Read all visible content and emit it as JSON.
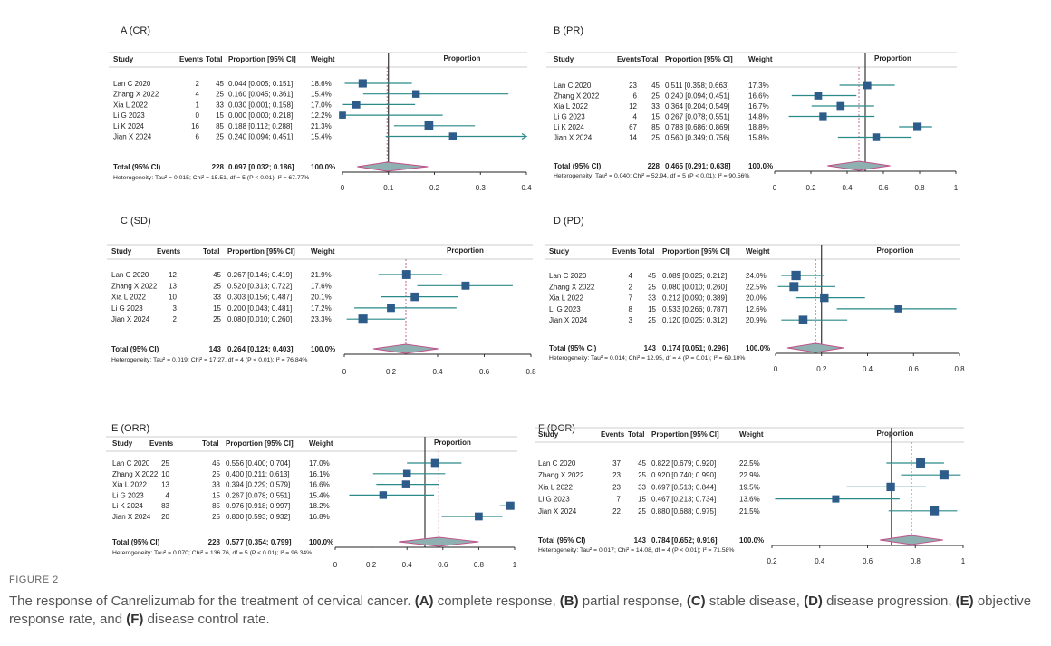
{
  "figure": {
    "label": "FIGURE 2",
    "caption": [
      {
        "t": "The response of Canrelizumab for the treatment of cervical cancer. ",
        "b": false
      },
      {
        "t": "(A)",
        "b": true
      },
      {
        "t": " complete response, ",
        "b": false
      },
      {
        "t": "(B)",
        "b": true
      },
      {
        "t": " partial response, ",
        "b": false
      },
      {
        "t": "(C)",
        "b": true
      },
      {
        "t": " stable disease, ",
        "b": false
      },
      {
        "t": "(D)",
        "b": true
      },
      {
        "t": " disease progression, ",
        "b": false
      },
      {
        "t": "(E)",
        "b": true
      },
      {
        "t": " objective response rate, and ",
        "b": false
      },
      {
        "t": "(F)",
        "b": true
      },
      {
        "t": " disease control rate.",
        "b": false
      }
    ]
  },
  "colors": {
    "box": "#2d5b8a",
    "ci": "#2a8a8a",
    "diamond_fill": "#8fb0b0",
    "diamond_edge": "#c0508a",
    "pooled_line": "#c05090"
  },
  "chart_data": [
    {
      "type": "forest",
      "panel": "A",
      "title": "A    (CR)",
      "columns": {
        "study": "Study",
        "events": "Events",
        "total": "Total",
        "ci": "Proportion [95% CI]",
        "weight": "Weight",
        "plot": "Proportion"
      },
      "studies": [
        {
          "name": "Lan C 2020",
          "events": "2",
          "total": "45",
          "ci_text": "0.044 [0.005; 0.151]",
          "weight": "18.6%",
          "est": 0.044,
          "lo": 0.005,
          "hi": 0.151
        },
        {
          "name": "Zhang X 2022",
          "events": "4",
          "total": "25",
          "ci_text": "0.160 [0.045; 0.361]",
          "weight": "15.4%",
          "est": 0.16,
          "lo": 0.045,
          "hi": 0.361
        },
        {
          "name": "Xia L 2022",
          "events": "1",
          "total": "33",
          "ci_text": "0.030 [0.001; 0.158]",
          "weight": "17.0%",
          "est": 0.03,
          "lo": 0.001,
          "hi": 0.158
        },
        {
          "name": "Li G 2023",
          "events": "0",
          "total": "15",
          "ci_text": "0.000 [0.000; 0.218]",
          "weight": "12.2%",
          "est": 0.0,
          "lo": 0.0,
          "hi": 0.218
        },
        {
          "name": "Li K 2024",
          "events": "16",
          "total": "85",
          "ci_text": "0.188 [0.112; 0.288]",
          "weight": "21.3%",
          "est": 0.188,
          "lo": 0.112,
          "hi": 0.288
        },
        {
          "name": "Jian X 2024",
          "events": "6",
          "total": "25",
          "ci_text": "0.240 [0.094; 0.451]",
          "weight": "15.4%",
          "est": 0.24,
          "lo": 0.094,
          "hi": 0.451
        }
      ],
      "total": {
        "name": "Total (95% CI)",
        "total": "228",
        "ci_text": "0.097 [0.032; 0.186]",
        "weight": "100.0%",
        "est": 0.097,
        "lo": 0.032,
        "hi": 0.186
      },
      "heterogeneity": "Heterogeneity: Tau² = 0.015; Chi² = 15.51, df = 5 (P < 0.01); I² = 67.77%",
      "xlim": [
        0,
        0.4
      ],
      "ticks": [
        "0",
        "0.1",
        "0.2",
        "0.3",
        "0.4"
      ],
      "ref_line": 0.1
    },
    {
      "type": "forest",
      "panel": "B",
      "title": "B (PR)",
      "columns": {
        "study": "Study",
        "events": "Events",
        "total": "Total",
        "ci": "Proportion [95% CI]",
        "weight": "Weight",
        "plot": "Proportion"
      },
      "studies": [
        {
          "name": "Lan C 2020",
          "events": "23",
          "total": "45",
          "ci_text": "0.511 [0.358; 0.663]",
          "weight": "17.3%",
          "est": 0.511,
          "lo": 0.358,
          "hi": 0.663
        },
        {
          "name": "Zhang X 2022",
          "events": "6",
          "total": "25",
          "ci_text": "0.240 [0.094; 0.451]",
          "weight": "16.6%",
          "est": 0.24,
          "lo": 0.094,
          "hi": 0.451
        },
        {
          "name": "Xia L 2022",
          "events": "12",
          "total": "33",
          "ci_text": "0.364 [0.204; 0.549]",
          "weight": "16.7%",
          "est": 0.364,
          "lo": 0.204,
          "hi": 0.549
        },
        {
          "name": "Li G 2023",
          "events": "4",
          "total": "15",
          "ci_text": "0.267 [0.078; 0.551]",
          "weight": "14.8%",
          "est": 0.267,
          "lo": 0.078,
          "hi": 0.551
        },
        {
          "name": "Li K 2024",
          "events": "67",
          "total": "85",
          "ci_text": "0.788 [0.686; 0.869]",
          "weight": "18.8%",
          "est": 0.788,
          "lo": 0.686,
          "hi": 0.869
        },
        {
          "name": "Jian X 2024",
          "events": "14",
          "total": "25",
          "ci_text": "0.560 [0.349; 0.756]",
          "weight": "15.8%",
          "est": 0.56,
          "lo": 0.349,
          "hi": 0.756
        }
      ],
      "total": {
        "name": "Total (95% CI)",
        "total": "228",
        "ci_text": "0.465 [0.291; 0.638]",
        "weight": "100.0%",
        "est": 0.465,
        "lo": 0.291,
        "hi": 0.638
      },
      "heterogeneity": "Heterogeneity: Tau² = 0.040; Chi² = 52.94, df = 5 (P < 0.01); I² = 90.56%",
      "xlim": [
        0,
        1
      ],
      "ticks": [
        "0",
        "0.2",
        "0.4",
        "0.6",
        "0.8",
        "1"
      ],
      "ref_line": 0.5
    },
    {
      "type": "forest",
      "panel": "C",
      "title": "C (SD)",
      "columns": {
        "study": "Study",
        "events": "Events",
        "total": "Total",
        "ci": "Proportion [95% CI]",
        "weight": "Weight",
        "plot": "Proportion"
      },
      "studies": [
        {
          "name": "Lan C 2020",
          "events": "12",
          "total": "45",
          "ci_text": "0.267 [0.146; 0.419]",
          "weight": "21.9%",
          "est": 0.267,
          "lo": 0.146,
          "hi": 0.419
        },
        {
          "name": "Zhang X 2022",
          "events": "13",
          "total": "25",
          "ci_text": "0.520 [0.313; 0.722]",
          "weight": "17.6%",
          "est": 0.52,
          "lo": 0.313,
          "hi": 0.722
        },
        {
          "name": "Xia L 2022",
          "events": "10",
          "total": "33",
          "ci_text": "0.303 [0.156; 0.487]",
          "weight": "20.1%",
          "est": 0.303,
          "lo": 0.156,
          "hi": 0.487
        },
        {
          "name": "Li G 2023",
          "events": "3",
          "total": "15",
          "ci_text": "0.200 [0.043; 0.481]",
          "weight": "17.2%",
          "est": 0.2,
          "lo": 0.043,
          "hi": 0.481
        },
        {
          "name": "Jian X 2024",
          "events": "2",
          "total": "25",
          "ci_text": "0.080 [0.010; 0.260]",
          "weight": "23.3%",
          "est": 0.08,
          "lo": 0.01,
          "hi": 0.26
        }
      ],
      "total": {
        "name": "Total (95% CI)",
        "total": "143",
        "ci_text": "0.264 [0.124; 0.403]",
        "weight": "100.0%",
        "est": 0.264,
        "lo": 0.124,
        "hi": 0.403
      },
      "heterogeneity": "Heterogeneity: Tau² = 0.019; Chi² = 17.27, df = 4 (P < 0.01); I² = 76.84%",
      "xlim": [
        0,
        0.8
      ],
      "ticks": [
        "0",
        "0.2",
        "0.4",
        "0.6",
        "0.8"
      ],
      "ref_line": null
    },
    {
      "type": "forest",
      "panel": "D",
      "title": "D (PD)",
      "columns": {
        "study": "Study",
        "events": "Events",
        "total": "Total",
        "ci": "Proportion [95% CI]",
        "weight": "Weight",
        "plot": "Proportion"
      },
      "studies": [
        {
          "name": "Lan C 2020",
          "events": "4",
          "total": "45",
          "ci_text": "0.089 [0.025; 0.212]",
          "weight": "24.0%",
          "est": 0.089,
          "lo": 0.025,
          "hi": 0.212
        },
        {
          "name": "Zhang X 2022",
          "events": "2",
          "total": "25",
          "ci_text": "0.080 [0.010; 0.260]",
          "weight": "22.5%",
          "est": 0.08,
          "lo": 0.01,
          "hi": 0.26
        },
        {
          "name": "Xia L 2022",
          "events": "7",
          "total": "33",
          "ci_text": "0.212 [0.090; 0.389]",
          "weight": "20.0%",
          "est": 0.212,
          "lo": 0.09,
          "hi": 0.389
        },
        {
          "name": "Li G 2023",
          "events": "8",
          "total": "15",
          "ci_text": "0.533 [0.266; 0.787]",
          "weight": "12.6%",
          "est": 0.533,
          "lo": 0.266,
          "hi": 0.787
        },
        {
          "name": "Jian X 2024",
          "events": "3",
          "total": "25",
          "ci_text": "0.120 [0.025; 0.312]",
          "weight": "20.9%",
          "est": 0.12,
          "lo": 0.025,
          "hi": 0.312
        }
      ],
      "total": {
        "name": "Total (95% CI)",
        "total": "143",
        "ci_text": "0.174 [0.051; 0.296]",
        "weight": "100.0%",
        "est": 0.174,
        "lo": 0.051,
        "hi": 0.296
      },
      "heterogeneity": "Heterogeneity: Tau² = 0.014; Chi² = 12.95, df = 4 (P = 0.01); I² = 69.10%",
      "xlim": [
        0,
        0.8
      ],
      "ticks": [
        "0",
        "0.2",
        "0.4",
        "0.6",
        "0.8"
      ],
      "ref_line": 0.2
    },
    {
      "type": "forest",
      "panel": "E",
      "title": "E (ORR)",
      "columns": {
        "study": "Study",
        "events": "Events",
        "total": "Total",
        "ci": "Proportion [95% CI]",
        "weight": "Weight",
        "plot": "Proportion"
      },
      "studies": [
        {
          "name": "Lan C 2020",
          "events": "25",
          "total": "45",
          "ci_text": "0.556 [0.400; 0.704]",
          "weight": "17.0%",
          "est": 0.556,
          "lo": 0.4,
          "hi": 0.704
        },
        {
          "name": "Zhang X 2022",
          "events": "10",
          "total": "25",
          "ci_text": "0.400 [0.211; 0.613]",
          "weight": "16.1%",
          "est": 0.4,
          "lo": 0.211,
          "hi": 0.613
        },
        {
          "name": "Xia L 2022",
          "events": "13",
          "total": "33",
          "ci_text": "0.394 [0.229; 0.579]",
          "weight": "16.6%",
          "est": 0.394,
          "lo": 0.229,
          "hi": 0.579
        },
        {
          "name": "Li G 2023",
          "events": "4",
          "total": "15",
          "ci_text": "0.267 [0.078; 0.551]",
          "weight": "15.4%",
          "est": 0.267,
          "lo": 0.078,
          "hi": 0.551
        },
        {
          "name": "Li K 2024",
          "events": "83",
          "total": "85",
          "ci_text": "0.976 [0.918; 0.997]",
          "weight": "18.2%",
          "est": 0.976,
          "lo": 0.918,
          "hi": 0.997
        },
        {
          "name": "Jian X 2024",
          "events": "20",
          "total": "25",
          "ci_text": "0.800 [0.593; 0.932]",
          "weight": "16.8%",
          "est": 0.8,
          "lo": 0.593,
          "hi": 0.932
        }
      ],
      "total": {
        "name": "Total (95% CI)",
        "total": "228",
        "ci_text": "0.577 [0.354; 0.799]",
        "weight": "100.0%",
        "est": 0.577,
        "lo": 0.354,
        "hi": 0.799
      },
      "heterogeneity": "Heterogeneity: Tau² = 0.070; Chi² = 136.76, df = 5 (P < 0.01); I² = 96.34%",
      "xlim": [
        0,
        1
      ],
      "ticks": [
        "0",
        "0.2",
        "0.4",
        "0.6",
        "0.8",
        "1"
      ],
      "ref_line": 0.5
    },
    {
      "type": "forest",
      "panel": "F",
      "title": "F (DCR)",
      "columns": {
        "study": "Study",
        "events": "Events",
        "total": "Total",
        "ci": "Proportion [95% CI]",
        "weight": "Weight",
        "plot": "Proportion"
      },
      "studies": [
        {
          "name": "Lan C 2020",
          "events": "37",
          "total": "45",
          "ci_text": "0.822 [0.679; 0.920]",
          "weight": "22.5%",
          "est": 0.822,
          "lo": 0.679,
          "hi": 0.92
        },
        {
          "name": "Zhang X 2022",
          "events": "23",
          "total": "25",
          "ci_text": "0.920 [0.740; 0.990]",
          "weight": "22.9%",
          "est": 0.92,
          "lo": 0.74,
          "hi": 0.99
        },
        {
          "name": "Xia L 2022",
          "events": "23",
          "total": "33",
          "ci_text": "0.697 [0.513; 0.844]",
          "weight": "19.5%",
          "est": 0.697,
          "lo": 0.513,
          "hi": 0.844
        },
        {
          "name": "Li G 2023",
          "events": "7",
          "total": "15",
          "ci_text": "0.467 [0.213; 0.734]",
          "weight": "13.6%",
          "est": 0.467,
          "lo": 0.213,
          "hi": 0.734
        },
        {
          "name": "Jian X 2024",
          "events": "22",
          "total": "25",
          "ci_text": "0.880 [0.688; 0.975]",
          "weight": "21.5%",
          "est": 0.88,
          "lo": 0.688,
          "hi": 0.975
        }
      ],
      "total": {
        "name": "Total (95% CI)",
        "total": "143",
        "ci_text": "0.784 [0.652; 0.916]",
        "weight": "100.0%",
        "est": 0.784,
        "lo": 0.652,
        "hi": 0.916
      },
      "heterogeneity": "Heterogeneity: Tau² = 0.017; Chi² = 14.08, df = 4 (P < 0.01); I² = 71.58%",
      "xlim": [
        0.2,
        1
      ],
      "ticks": [
        "0.2",
        "0.4",
        "0.6",
        "0.8",
        "1"
      ],
      "ref_line": 0.7
    }
  ]
}
